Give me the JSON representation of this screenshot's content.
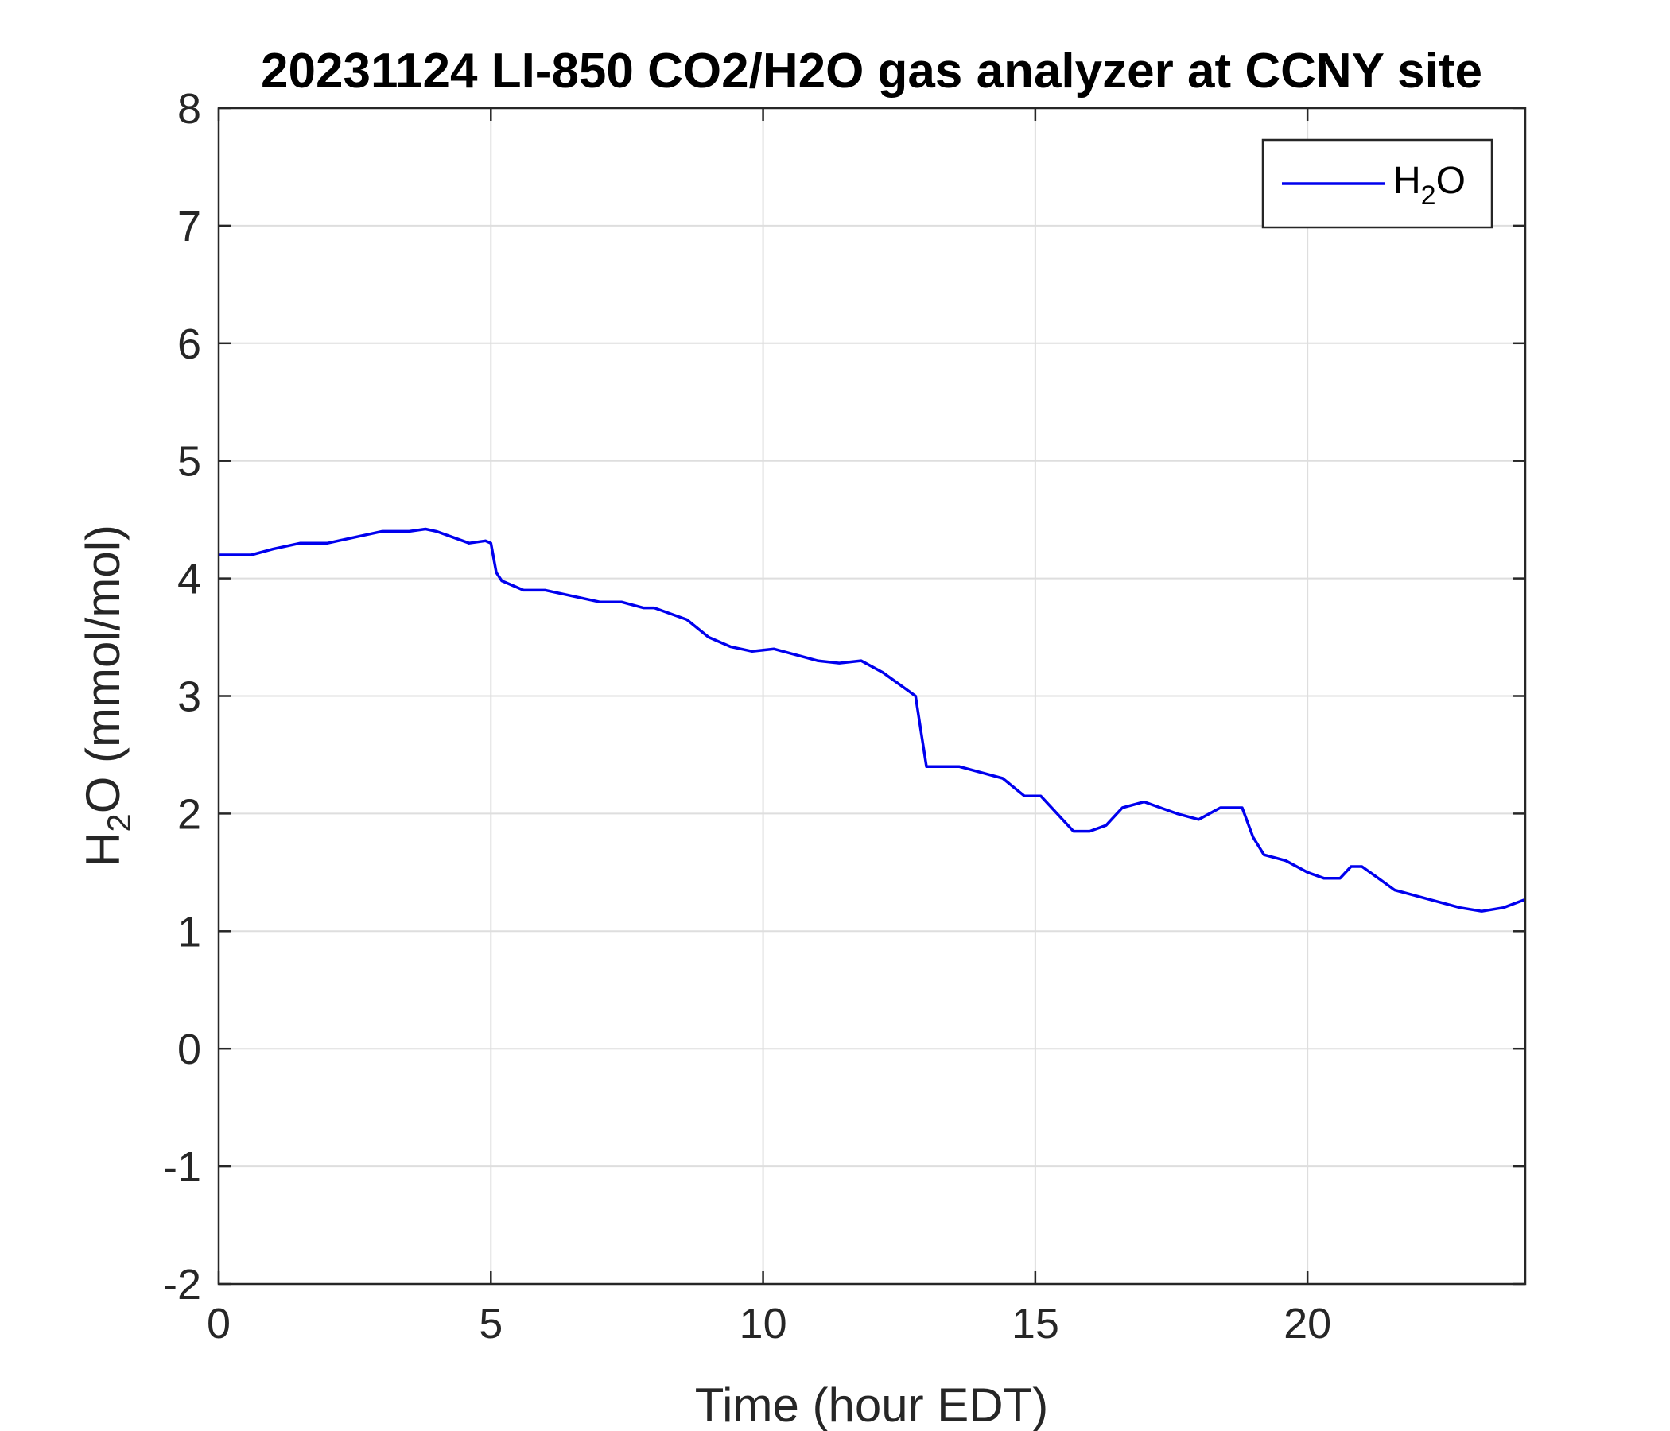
{
  "chart_data": {
    "type": "line",
    "title": "20231124 LI-850 CO2/H2O gas analyzer at CCNY site",
    "xlabel": "Time (hour EDT)",
    "ylabel": {
      "base": "H",
      "sub": "2",
      "rest": "O (mmol/mol)"
    },
    "xlim": [
      0,
      24
    ],
    "ylim": [
      -2,
      8
    ],
    "xticks": [
      0,
      5,
      10,
      15,
      20
    ],
    "yticks": [
      -2,
      -1,
      0,
      1,
      2,
      3,
      4,
      5,
      6,
      7,
      8
    ],
    "grid": true,
    "legend_position": "top-right",
    "series": [
      {
        "name": {
          "base": "H",
          "sub": "2",
          "rest": "O"
        },
        "color": "#0000ee",
        "x": [
          0,
          0.3,
          0.6,
          1.0,
          1.5,
          2.0,
          2.5,
          3.0,
          3.5,
          3.8,
          4.0,
          4.3,
          4.6,
          4.9,
          5.0,
          5.1,
          5.2,
          5.6,
          6.0,
          6.5,
          7.0,
          7.4,
          7.8,
          8.0,
          8.3,
          8.6,
          9.0,
          9.4,
          9.8,
          10.2,
          10.6,
          11.0,
          11.4,
          11.8,
          12.2,
          12.5,
          12.8,
          12.9,
          13.0,
          13.3,
          13.6,
          14.0,
          14.4,
          14.8,
          15.1,
          15.4,
          15.7,
          16.0,
          16.3,
          16.6,
          17.0,
          17.3,
          17.6,
          18.0,
          18.4,
          18.8,
          19.0,
          19.2,
          19.6,
          20.0,
          20.3,
          20.6,
          20.8,
          21.0,
          21.3,
          21.6,
          22.0,
          22.4,
          22.8,
          23.2,
          23.6,
          24.0
        ],
        "y": [
          4.2,
          4.2,
          4.2,
          4.25,
          4.3,
          4.3,
          4.35,
          4.4,
          4.4,
          4.42,
          4.4,
          4.35,
          4.3,
          4.32,
          4.3,
          4.05,
          3.98,
          3.9,
          3.9,
          3.85,
          3.8,
          3.8,
          3.75,
          3.75,
          3.7,
          3.65,
          3.5,
          3.42,
          3.38,
          3.4,
          3.35,
          3.3,
          3.28,
          3.3,
          3.2,
          3.1,
          3.0,
          2.7,
          2.4,
          2.4,
          2.4,
          2.35,
          2.3,
          2.15,
          2.15,
          2.0,
          1.85,
          1.85,
          1.9,
          2.05,
          2.1,
          2.05,
          2.0,
          1.95,
          2.05,
          2.05,
          1.8,
          1.65,
          1.6,
          1.5,
          1.45,
          1.45,
          1.55,
          1.55,
          1.45,
          1.35,
          1.3,
          1.25,
          1.2,
          1.17,
          1.2,
          1.27
        ]
      }
    ]
  }
}
